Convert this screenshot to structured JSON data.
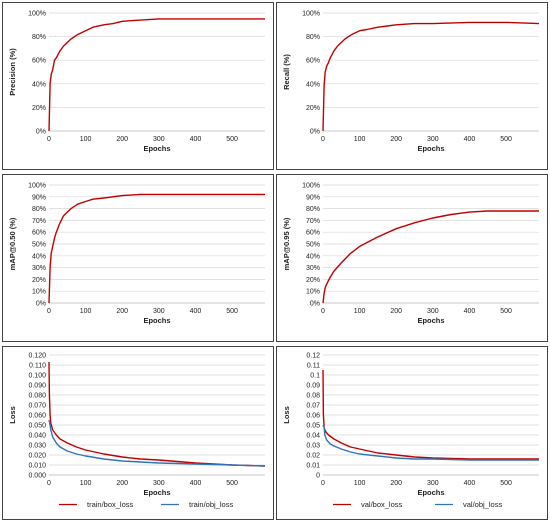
{
  "chart_data": [
    {
      "type": "line",
      "xlabel": "Epochs",
      "ylabel": "Precision (%)",
      "xlim": [
        0,
        590
      ],
      "ylim": [
        0,
        100
      ],
      "yticks": [
        "0%",
        "20%",
        "40%",
        "60%",
        "80%",
        "100%"
      ],
      "xticks": [
        0,
        100,
        200,
        300,
        400,
        500
      ],
      "grid": true,
      "series": [
        {
          "color": "#c00000",
          "x": [
            0,
            3,
            6,
            10,
            15,
            20,
            30,
            40,
            50,
            60,
            70,
            80,
            100,
            120,
            150,
            175,
            200,
            250,
            300,
            400,
            500,
            590
          ],
          "y": [
            0,
            40,
            48,
            52,
            60,
            62,
            68,
            72,
            75,
            78,
            80,
            82,
            85,
            88,
            90,
            91,
            93,
            94,
            95,
            95,
            95,
            95
          ]
        }
      ]
    },
    {
      "type": "line",
      "xlabel": "Epochs",
      "ylabel": "Recall (%)",
      "xlim": [
        0,
        590
      ],
      "ylim": [
        0,
        100
      ],
      "yticks": [
        "0%",
        "20%",
        "40%",
        "60%",
        "80%",
        "100%"
      ],
      "xticks": [
        0,
        100,
        200,
        300,
        400,
        500
      ],
      "grid": true,
      "series": [
        {
          "color": "#c00000",
          "x": [
            0,
            3,
            6,
            10,
            15,
            20,
            30,
            40,
            50,
            60,
            70,
            80,
            100,
            120,
            150,
            175,
            200,
            250,
            300,
            400,
            500,
            590
          ],
          "y": [
            0,
            38,
            50,
            55,
            58,
            62,
            68,
            72,
            75,
            78,
            80,
            82,
            85,
            86,
            88,
            89,
            90,
            91,
            91,
            92,
            92,
            91
          ]
        }
      ]
    },
    {
      "type": "line",
      "xlabel": "Epochs",
      "ylabel": "mAP@0.50 (%)",
      "xlim": [
        0,
        590
      ],
      "ylim": [
        0,
        100
      ],
      "yticks": [
        "0%",
        "10%",
        "20%",
        "30%",
        "40%",
        "50%",
        "60%",
        "70%",
        "80%",
        "90%",
        "100%"
      ],
      "xticks": [
        0,
        100,
        200,
        300,
        400,
        500
      ],
      "grid": true,
      "series": [
        {
          "color": "#c00000",
          "x": [
            0,
            3,
            6,
            10,
            15,
            20,
            30,
            40,
            50,
            60,
            70,
            80,
            100,
            120,
            150,
            200,
            250,
            300,
            400,
            500,
            590
          ],
          "y": [
            0,
            30,
            42,
            48,
            55,
            60,
            68,
            74,
            77,
            80,
            82,
            84,
            86,
            88,
            89,
            91,
            92,
            92,
            92,
            92,
            92
          ]
        }
      ]
    },
    {
      "type": "line",
      "xlabel": "Epochs",
      "ylabel": "mAP@0.95 (%)",
      "xlim": [
        0,
        590
      ],
      "ylim": [
        0,
        100
      ],
      "yticks": [
        "0%",
        "10%",
        "20%",
        "30%",
        "40%",
        "50%",
        "60%",
        "70%",
        "80%",
        "90%",
        "100%"
      ],
      "xticks": [
        0,
        100,
        200,
        300,
        400,
        500
      ],
      "grid": true,
      "series": [
        {
          "color": "#c00000",
          "x": [
            0,
            3,
            6,
            10,
            20,
            30,
            50,
            75,
            100,
            150,
            200,
            250,
            300,
            350,
            400,
            450,
            500,
            550,
            590
          ],
          "y": [
            0,
            8,
            13,
            16,
            22,
            27,
            34,
            42,
            48,
            56,
            63,
            68,
            72,
            75,
            77,
            78,
            78,
            78,
            78
          ]
        }
      ]
    },
    {
      "type": "line",
      "xlabel": "Epochs",
      "ylabel": "Loss",
      "xlim": [
        0,
        590
      ],
      "ylim": [
        0,
        0.12
      ],
      "yticks": [
        "0.000",
        "0.010",
        "0.020",
        "0.030",
        "0.040",
        "0.050",
        "0.060",
        "0.070",
        "0.080",
        "0.090",
        "0.100",
        "0.110",
        "0.120"
      ],
      "xticks": [
        0,
        100,
        200,
        300,
        400,
        500
      ],
      "grid": true,
      "legend": "bottom",
      "series": [
        {
          "name": "train/box_loss",
          "color": "#c00000",
          "x": [
            0,
            1,
            3,
            5,
            10,
            20,
            30,
            50,
            75,
            100,
            150,
            200,
            250,
            300,
            400,
            500,
            590
          ],
          "y": [
            0.113,
            0.08,
            0.06,
            0.052,
            0.045,
            0.04,
            0.036,
            0.032,
            0.028,
            0.025,
            0.021,
            0.018,
            0.016,
            0.015,
            0.012,
            0.01,
            0.009
          ]
        },
        {
          "name": "train/obj_loss",
          "color": "#2e75b6",
          "x": [
            0,
            3,
            5,
            10,
            20,
            30,
            50,
            75,
            100,
            150,
            200,
            250,
            300,
            400,
            500,
            590
          ],
          "y": [
            0.055,
            0.05,
            0.045,
            0.038,
            0.032,
            0.028,
            0.024,
            0.021,
            0.019,
            0.016,
            0.014,
            0.013,
            0.012,
            0.011,
            0.01,
            0.009
          ]
        }
      ]
    },
    {
      "type": "line",
      "xlabel": "Epochs",
      "ylabel": "Loss",
      "xlim": [
        0,
        590
      ],
      "ylim": [
        0,
        0.12
      ],
      "yticks": [
        "0",
        "0.01",
        "0.02",
        "0.03",
        "0.04",
        "0.05",
        "0.06",
        "0.07",
        "0.08",
        "0.09",
        "0.1",
        "0.11",
        "0.12"
      ],
      "xticks": [
        0,
        100,
        200,
        300,
        400,
        500
      ],
      "grid": true,
      "legend": "bottom",
      "series": [
        {
          "name": "val/box_loss",
          "color": "#c00000",
          "x": [
            0,
            1,
            3,
            5,
            8,
            15,
            30,
            50,
            75,
            100,
            150,
            200,
            250,
            300,
            400,
            500,
            590
          ],
          "y": [
            0.105,
            0.06,
            0.048,
            0.045,
            0.043,
            0.04,
            0.036,
            0.032,
            0.028,
            0.026,
            0.022,
            0.02,
            0.018,
            0.017,
            0.016,
            0.016,
            0.016
          ]
        },
        {
          "name": "val/obj_loss",
          "color": "#2e75b6",
          "x": [
            0,
            3,
            5,
            10,
            20,
            30,
            50,
            75,
            100,
            150,
            200,
            250,
            300,
            400,
            500,
            590
          ],
          "y": [
            0.05,
            0.048,
            0.04,
            0.035,
            0.031,
            0.029,
            0.026,
            0.023,
            0.021,
            0.019,
            0.017,
            0.016,
            0.016,
            0.015,
            0.015,
            0.015
          ]
        }
      ]
    }
  ]
}
